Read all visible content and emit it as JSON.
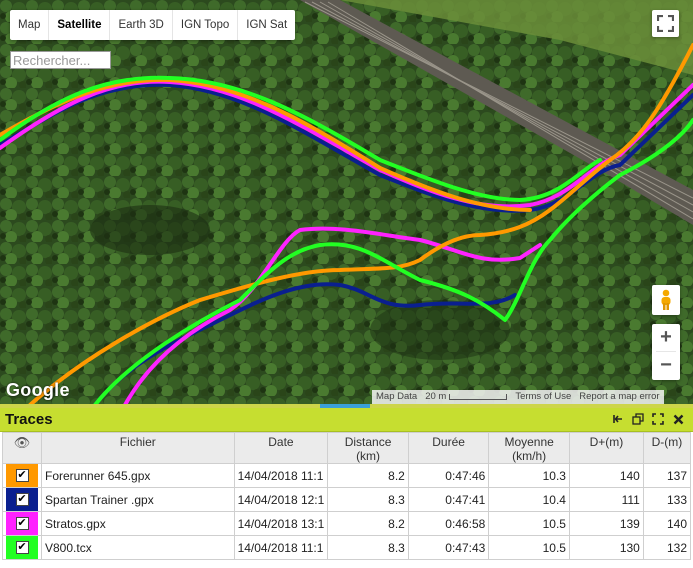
{
  "map": {
    "type_buttons": [
      {
        "label": "Map",
        "active": false
      },
      {
        "label": "Satellite",
        "active": true
      },
      {
        "label": "Earth 3D",
        "active": false
      },
      {
        "label": "IGN Topo",
        "active": false
      },
      {
        "label": "IGN Sat",
        "active": false
      }
    ],
    "search": {
      "placeholder": "Rechercher..."
    },
    "logo": "Google",
    "footer": {
      "map_data": "Map Data",
      "scale": "20 m",
      "terms": "Terms of Use",
      "report": "Report a map error"
    },
    "zoom": {
      "in": "+",
      "out": "−"
    }
  },
  "traces": {
    "title": "Traces",
    "columns": {
      "file": "Fichier",
      "date": "Date",
      "distance": "Distance",
      "distance_unit": "(km)",
      "duration": "Durée",
      "average": "Moyenne",
      "average_unit": "(km/h)",
      "dplus": "D+(m)",
      "dminus": "D-(m)"
    },
    "rows": [
      {
        "color": "#ff9900",
        "file": "Forerunner 645.gpx",
        "date": "14/04/2018 11:1",
        "distance": "8.2",
        "duration": "0:47:46",
        "average": "10.3",
        "dplus": "140",
        "dminus": "137"
      },
      {
        "color": "#0a1f8f",
        "file": "Spartan Trainer .gpx",
        "date": "14/04/2018 12:1",
        "distance": "8.3",
        "duration": "0:47:41",
        "average": "10.4",
        "dplus": "111",
        "dminus": "133"
      },
      {
        "color": "#ff22ff",
        "file": "Stratos.gpx",
        "date": "14/04/2018 13:1",
        "distance": "8.2",
        "duration": "0:46:58",
        "average": "10.5",
        "dplus": "139",
        "dminus": "140"
      },
      {
        "color": "#22ff22",
        "file": "V800.tcx",
        "date": "14/04/2018 11:1",
        "distance": "8.3",
        "duration": "0:47:43",
        "average": "10.5",
        "dplus": "130",
        "dminus": "132"
      }
    ]
  },
  "icons": {
    "eye": "eye-icon",
    "check": "check-icon",
    "collapse": "collapse-left-icon",
    "restore": "restore-window-icon",
    "expand": "expand-icon",
    "close": "close-icon"
  }
}
